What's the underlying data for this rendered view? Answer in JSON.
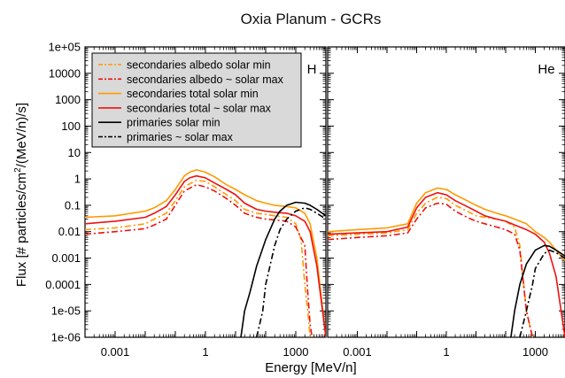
{
  "chart_data": {
    "type": "line",
    "title": "Oxia Planum  - GCRs",
    "xlabel": "Energy [MeV/n]",
    "ylabel_parts": [
      "Flux [# particles/cm",
      "2",
      "/(MeV/n)/s]"
    ],
    "x_scale": "log",
    "y_scale": "log",
    "xlim": [
      0.0001,
      10000
    ],
    "ylim": [
      1e-06,
      100000
    ],
    "yticks": [
      "1e-06",
      "1e-05",
      "0.0001",
      "0.001",
      "0.01",
      "0.1",
      "1",
      "10",
      "100",
      "1000",
      "10000",
      "1e+05"
    ],
    "xticks": [
      "0.001",
      "1",
      "1000"
    ],
    "grid": false,
    "legend_position": "top-left of H panel",
    "legend": [
      {
        "label": "secondaries albedo solar min",
        "color": "#ff9900",
        "dash": "dash-dot"
      },
      {
        "label": "secondaries albedo ~ solar max",
        "color": "#ee1111",
        "dash": "dash-dot"
      },
      {
        "label": "secondaries total solar min",
        "color": "#ff9900",
        "dash": "solid"
      },
      {
        "label": "secondaries total ~ solar max",
        "color": "#ee1111",
        "dash": "solid"
      },
      {
        "label": "primaries solar min",
        "color": "#000000",
        "dash": "solid"
      },
      {
        "label": "primaries ~ solar max",
        "color": "#000000",
        "dash": "dash-dot"
      }
    ],
    "panels": [
      {
        "label": "H",
        "series": [
          {
            "name": "secondaries albedo solar min",
            "x": [
              0.0001,
              0.001,
              0.01,
              0.02,
              0.05,
              0.1,
              0.2,
              0.5,
              1,
              2,
              5,
              10,
              20,
              50,
              100,
              200,
              500,
              1000,
              1500,
              2000,
              2500,
              3000
            ],
            "y": [
              0.012,
              0.014,
              0.02,
              0.03,
              0.05,
              0.15,
              0.5,
              0.9,
              0.8,
              0.5,
              0.25,
              0.15,
              0.07,
              0.05,
              0.045,
              0.04,
              0.035,
              0.02,
              0.005,
              0.0001,
              1e-05,
              1e-06
            ]
          },
          {
            "name": "secondaries albedo ~ solar max",
            "x": [
              0.0001,
              0.001,
              0.01,
              0.02,
              0.05,
              0.1,
              0.2,
              0.5,
              1,
              2,
              5,
              10,
              20,
              50,
              100,
              200,
              500,
              1000,
              2000,
              2500,
              3000,
              3500
            ],
            "y": [
              0.008,
              0.01,
              0.013,
              0.018,
              0.03,
              0.1,
              0.35,
              0.6,
              0.5,
              0.35,
              0.18,
              0.1,
              0.05,
              0.035,
              0.03,
              0.028,
              0.025,
              0.015,
              0.003,
              5e-05,
              3e-06,
              1e-06
            ]
          },
          {
            "name": "secondaries total solar min",
            "x": [
              0.0001,
              0.001,
              0.01,
              0.02,
              0.05,
              0.1,
              0.2,
              0.3,
              0.5,
              1,
              2,
              5,
              10,
              20,
              50,
              100,
              200,
              500,
              1000,
              2000,
              3000,
              5000,
              10000
            ],
            "y": [
              0.035,
              0.04,
              0.06,
              0.08,
              0.15,
              0.4,
              1.3,
              1.8,
              2.2,
              1.8,
              1.2,
              0.6,
              0.4,
              0.25,
              0.15,
              0.12,
              0.1,
              0.09,
              0.08,
              0.05,
              0.02,
              0.001,
              1e-06
            ]
          },
          {
            "name": "secondaries total ~ solar max",
            "x": [
              0.0001,
              0.001,
              0.01,
              0.02,
              0.05,
              0.1,
              0.2,
              0.3,
              0.5,
              1,
              2,
              5,
              10,
              20,
              50,
              100,
              200,
              500,
              1000,
              2000,
              3000,
              5000,
              10000
            ],
            "y": [
              0.02,
              0.025,
              0.035,
              0.05,
              0.09,
              0.25,
              0.8,
              1.1,
              1.3,
              1.1,
              0.7,
              0.4,
              0.25,
              0.12,
              0.07,
              0.06,
              0.055,
              0.05,
              0.04,
              0.025,
              0.01,
              0.0005,
              1e-06
            ]
          },
          {
            "name": "primaries solar min",
            "x": [
              15,
              20,
              30,
              50,
              100,
              200,
              300,
              500,
              1000,
              2000,
              3000,
              5000,
              10000
            ],
            "y": [
              1e-06,
              1e-05,
              5e-05,
              0.0005,
              0.005,
              0.03,
              0.06,
              0.1,
              0.13,
              0.12,
              0.1,
              0.07,
              0.04
            ]
          },
          {
            "name": "primaries ~ solar max",
            "x": [
              50,
              80,
              100,
              200,
              300,
              500,
              1000,
              2000,
              3000,
              5000,
              10000
            ],
            "y": [
              1e-06,
              1e-05,
              0.0001,
              0.003,
              0.012,
              0.03,
              0.06,
              0.08,
              0.07,
              0.05,
              0.03
            ]
          }
        ]
      },
      {
        "label": "He",
        "series": [
          {
            "name": "secondaries albedo solar min",
            "x": [
              0.0001,
              0.001,
              0.01,
              0.05,
              0.1,
              0.2,
              0.5,
              1,
              2,
              5,
              10,
              20,
              50,
              100,
              200,
              300,
              500,
              800
            ],
            "y": [
              0.007,
              0.008,
              0.009,
              0.012,
              0.05,
              0.12,
              0.2,
              0.18,
              0.1,
              0.06,
              0.04,
              0.035,
              0.03,
              0.025,
              0.015,
              0.003,
              1e-05,
              1e-06
            ]
          },
          {
            "name": "secondaries albedo ~ solar max",
            "x": [
              0.0001,
              0.001,
              0.01,
              0.05,
              0.1,
              0.2,
              0.5,
              1,
              2,
              5,
              10,
              20,
              50,
              100,
              200,
              300,
              500,
              800
            ],
            "y": [
              0.005,
              0.006,
              0.007,
              0.009,
              0.03,
              0.08,
              0.12,
              0.11,
              0.06,
              0.035,
              0.025,
              0.02,
              0.015,
              0.012,
              0.008,
              0.002,
              1e-05,
              1e-06
            ]
          },
          {
            "name": "secondaries total solar min",
            "x": [
              0.0001,
              0.001,
              0.01,
              0.05,
              0.1,
              0.2,
              0.5,
              1,
              2,
              5,
              10,
              20,
              50,
              100,
              200,
              500,
              1000,
              2000,
              3000,
              5000,
              10000
            ],
            "y": [
              0.01,
              0.012,
              0.014,
              0.02,
              0.12,
              0.3,
              0.45,
              0.4,
              0.25,
              0.15,
              0.1,
              0.07,
              0.05,
              0.04,
              0.03,
              0.02,
              0.01,
              0.006,
              0.004,
              0.002,
              0.0008
            ]
          },
          {
            "name": "secondaries total ~ solar max",
            "x": [
              0.0001,
              0.001,
              0.01,
              0.05,
              0.1,
              0.2,
              0.5,
              1,
              2,
              5,
              10,
              20,
              50,
              100,
              200,
              500,
              1000,
              2000,
              3000,
              5000,
              10000
            ],
            "y": [
              0.008,
              0.009,
              0.01,
              0.015,
              0.08,
              0.2,
              0.3,
              0.25,
              0.15,
              0.09,
              0.06,
              0.04,
              0.03,
              0.025,
              0.018,
              0.012,
              0.008,
              0.004,
              0.0015,
              0.0002,
              1e-06
            ]
          },
          {
            "name": "primaries solar min",
            "x": [
              150,
              200,
              300,
              500,
              1000,
              2000,
              3000,
              5000,
              10000
            ],
            "y": [
              1e-06,
              1e-05,
              0.0001,
              0.0006,
              0.002,
              0.003,
              0.0028,
              0.002,
              0.0012
            ]
          },
          {
            "name": "primaries ~ solar max",
            "x": [
              300,
              500,
              800,
              1000,
              2000,
              3000,
              5000,
              10000
            ],
            "y": [
              1e-06,
              1e-05,
              0.0001,
              0.0004,
              0.0015,
              0.002,
              0.0016,
              0.001
            ]
          }
        ]
      }
    ]
  }
}
